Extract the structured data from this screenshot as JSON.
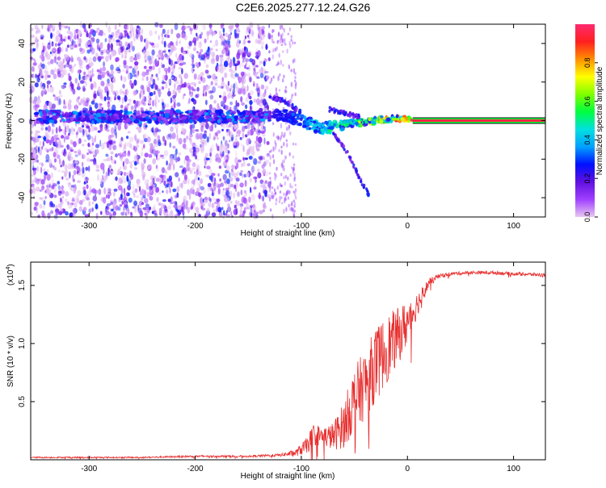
{
  "figure_title": "C2E6.2025.277.12.24.G26",
  "chart_data": [
    {
      "type": "heatmap",
      "title": "C2E6.2025.277.12.24.G26",
      "xlabel": "Height of straight line (km)",
      "ylabel": "Frequency (Hz)",
      "xlim": [
        -355,
        130
      ],
      "ylim": [
        -50,
        50
      ],
      "xticks": [
        -300,
        -200,
        -100,
        0,
        100
      ],
      "yticks": [
        -40,
        -20,
        0,
        20,
        40
      ],
      "xtick_labels": [
        "-300",
        "-200",
        "-100",
        "0",
        "100"
      ],
      "ytick_labels": [
        "-40",
        "-20",
        "0",
        "20",
        "40"
      ],
      "colorbar": {
        "label": "Normalized spectral amplitude",
        "range": [
          0,
          1
        ],
        "ticks": [
          0.0,
          0.2,
          0.4,
          0.6,
          0.8
        ],
        "tick_labels": [
          "0.0",
          "0.2",
          "0.4",
          "0.6",
          "0.8"
        ],
        "colormap": [
          "#e8c8f0",
          "#a040ff",
          "#6010e0",
          "#0010ff",
          "#00a0ff",
          "#00e0e0",
          "#00ff40",
          "#80ff00",
          "#ffff00",
          "#ff9000",
          "#ff2020",
          "#ff2a6e"
        ]
      },
      "noise_region": {
        "x_start": -355,
        "x_end": -130,
        "sparse_end": -105
      },
      "signal_track": [
        {
          "x": -350,
          "freq": 2
        },
        {
          "x": -300,
          "freq": 2
        },
        {
          "x": -250,
          "freq": 2
        },
        {
          "x": -200,
          "freq": 2
        },
        {
          "x": -150,
          "freq": 2
        },
        {
          "x": -125,
          "freq": 3
        },
        {
          "x": -110,
          "freq": 2
        },
        {
          "x": -100,
          "freq": 0
        },
        {
          "x": -90,
          "freq": -2
        },
        {
          "x": -80,
          "freq": -4
        },
        {
          "x": -70,
          "freq": -3
        },
        {
          "x": -60,
          "freq": -2
        },
        {
          "x": -50,
          "freq": -1
        },
        {
          "x": -40,
          "freq": -1
        },
        {
          "x": -30,
          "freq": 0
        },
        {
          "x": -20,
          "freq": 1
        },
        {
          "x": -10,
          "freq": 1
        },
        {
          "x": 0,
          "freq": 1
        },
        {
          "x": 5,
          "freq": 0
        }
      ],
      "branches": [
        [
          {
            "x": -70,
            "freq": -6
          },
          {
            "x": -55,
            "freq": -18
          },
          {
            "x": -45,
            "freq": -30
          },
          {
            "x": -35,
            "freq": -40
          }
        ],
        [
          {
            "x": -130,
            "freq": 12
          },
          {
            "x": -115,
            "freq": 10
          },
          {
            "x": -100,
            "freq": 4
          }
        ],
        [
          {
            "x": -75,
            "freq": 6
          },
          {
            "x": -60,
            "freq": 4
          },
          {
            "x": -45,
            "freq": 2
          }
        ]
      ],
      "steady_line": {
        "x_start": 5,
        "x_end": 130,
        "freq": 0
      }
    },
    {
      "type": "line",
      "xlabel": "Height of straight line (km)",
      "ylabel": "SNR (10 * v/v)",
      "y_exponent": "(x10",
      "y_exponent_power": "4",
      "y_exponent_close": ")",
      "xlim": [
        -355,
        130
      ],
      "ylim": [
        0,
        1.7
      ],
      "xticks": [
        -300,
        -200,
        -100,
        0,
        100
      ],
      "yticks": [
        0.5,
        1.0,
        1.5
      ],
      "xtick_labels": [
        "-300",
        "-200",
        "-100",
        "0",
        "100"
      ],
      "ytick_labels": [
        "0.5",
        "1.0",
        "1.5"
      ],
      "line_color": "#e83030",
      "series": [
        {
          "name": "SNR",
          "x": [
            -355,
            -300,
            -250,
            -200,
            -150,
            -120,
            -105,
            -95,
            -88,
            -80,
            -70,
            -60,
            -50,
            -40,
            -30,
            -20,
            -10,
            0,
            10,
            20,
            30,
            40,
            60,
            80,
            100,
            130
          ],
          "y": [
            0.02,
            0.02,
            0.02,
            0.03,
            0.03,
            0.04,
            0.06,
            0.12,
            0.22,
            0.2,
            0.2,
            0.3,
            0.52,
            0.65,
            0.82,
            0.95,
            1.05,
            1.18,
            1.35,
            1.52,
            1.58,
            1.6,
            1.61,
            1.61,
            1.6,
            1.59
          ],
          "noise": [
            0.006,
            0.006,
            0.006,
            0.008,
            0.008,
            0.012,
            0.03,
            0.07,
            0.1,
            0.08,
            0.12,
            0.2,
            0.28,
            0.3,
            0.32,
            0.3,
            0.25,
            0.2,
            0.1,
            0.04,
            0.02,
            0.015,
            0.015,
            0.015,
            0.015,
            0.015
          ]
        }
      ]
    }
  ]
}
